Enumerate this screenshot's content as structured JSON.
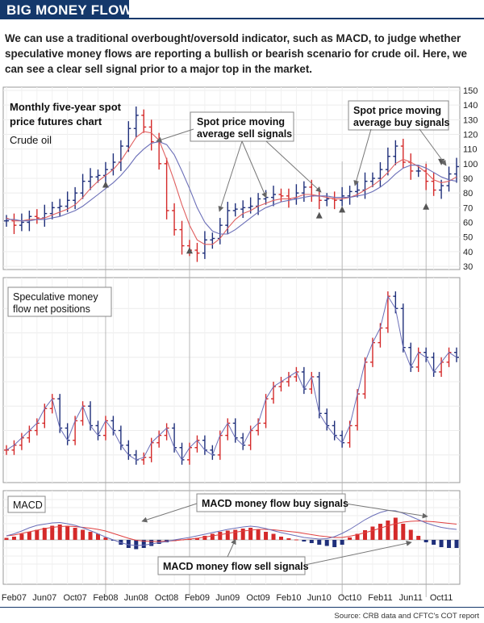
{
  "header": {
    "title": "BIG MONEY FLOWS",
    "intro": "We can use a traditional overbought/oversold indicator, such as MACD, to judge whether speculative money flows are reporting a bullish or bearish scenario for crude oil. Here, we can see a clear sell signal prior to a major top in the market.",
    "source": "Source: CRB data and CFTC's COT report"
  },
  "colors": {
    "up": "#1f2f7a",
    "down": "#d42a2a",
    "avg_red": "#e06060",
    "avg_blue": "#6b6fb8",
    "header": "#14386b"
  },
  "chart_data": [
    {
      "type": "line",
      "title": "Monthly five-year spot price futures chart",
      "subtitle": "Crude oil",
      "x": [
        "Jan07",
        "Feb07",
        "Mar07",
        "Apr07",
        "May07",
        "Jun07",
        "Jul07",
        "Aug07",
        "Sep07",
        "Oct07",
        "Nov07",
        "Dec07",
        "Jan08",
        "Feb08",
        "Mar08",
        "Apr08",
        "May08",
        "Jun08",
        "Jul08",
        "Aug08",
        "Sep08",
        "Oct08",
        "Nov08",
        "Dec08",
        "Jan09",
        "Feb09",
        "Mar09",
        "Apr09",
        "May09",
        "Jun09",
        "Jul09",
        "Aug09",
        "Sep09",
        "Oct09",
        "Nov09",
        "Dec09",
        "Jan10",
        "Feb10",
        "Mar10",
        "Apr10",
        "May10",
        "Jun10",
        "Jul10",
        "Aug10",
        "Sep10",
        "Oct10",
        "Nov10",
        "Dec10",
        "Jan11",
        "Feb11",
        "Mar11",
        "Apr11",
        "May11",
        "Jun11",
        "Jul11",
        "Aug11",
        "Sep11",
        "Oct11",
        "Nov11",
        "Dec11"
      ],
      "xticks": [
        "Feb07",
        "Jun07",
        "Oct07",
        "Feb08",
        "Jun08",
        "Oct08",
        "Feb09",
        "Jun09",
        "Oct09",
        "Feb10",
        "Jun10",
        "Oct10",
        "Feb11",
        "Jun11",
        "Oct11"
      ],
      "yticks": [
        30,
        40,
        50,
        60,
        70,
        80,
        90,
        100,
        110,
        120,
        130,
        140,
        150
      ],
      "ylim": [
        30,
        150
      ],
      "series": [
        {
          "values": [
            61,
            58,
            60,
            64,
            63,
            66,
            70,
            71,
            75,
            80,
            88,
            91,
            92,
            96,
            101,
            112,
            124,
            133,
            125,
            115,
            100,
            68,
            55,
            44,
            41,
            39,
            48,
            49,
            58,
            68,
            69,
            70,
            71,
            76,
            77,
            79,
            78,
            76,
            80,
            84,
            78,
            75,
            76,
            75,
            78,
            81,
            82,
            88,
            90,
            96,
            105,
            112,
            101,
            95,
            95,
            88,
            82,
            85,
            93,
            98
          ]
        }
      ],
      "moving_averages": [
        {
          "color": "red",
          "values": [
            63,
            61,
            61,
            62,
            62,
            63,
            65,
            67,
            69,
            72,
            77,
            83,
            88,
            92,
            96,
            102,
            110,
            118,
            122,
            121,
            116,
            103,
            88,
            72,
            58,
            48,
            45,
            45,
            49,
            56,
            62,
            66,
            68,
            71,
            73,
            75,
            76,
            76,
            77,
            79,
            79,
            78,
            77,
            76,
            76,
            77,
            79,
            82,
            85,
            89,
            94,
            100,
            103,
            101,
            98,
            94,
            89,
            87,
            88,
            91
          ]
        },
        {
          "color": "blue",
          "values": [
            62,
            62,
            61,
            61,
            62,
            62,
            63,
            64,
            66,
            68,
            71,
            75,
            79,
            83,
            87,
            92,
            98,
            105,
            110,
            114,
            115,
            113,
            106,
            95,
            83,
            70,
            60,
            54,
            52,
            52,
            55,
            59,
            63,
            67,
            70,
            72,
            74,
            75,
            76,
            77,
            78,
            78,
            78,
            77,
            77,
            77,
            78,
            79,
            81,
            84,
            88,
            93,
            97,
            99,
            99,
            97,
            94,
            91,
            89,
            88
          ]
        }
      ],
      "annotations": [
        "Spot price moving average sell signals",
        "Spot price moving average buy signals"
      ]
    },
    {
      "type": "line",
      "title": "Speculative money flow net positions",
      "x_same_as": "panel 1",
      "series": [
        {
          "values": [
            12,
            14,
            17,
            20,
            23,
            29,
            33,
            21,
            16,
            24,
            30,
            22,
            18,
            24,
            20,
            14,
            10,
            8,
            9,
            15,
            18,
            21,
            13,
            8,
            13,
            16,
            12,
            10,
            18,
            23,
            17,
            14,
            20,
            23,
            33,
            38,
            40,
            42,
            44,
            37,
            42,
            27,
            22,
            18,
            15,
            22,
            35,
            48,
            56,
            62,
            75,
            70,
            54,
            46,
            52,
            50,
            44,
            48,
            52,
            50
          ]
        }
      ]
    },
    {
      "type": "bar",
      "title": "MACD",
      "histogram": [
        0.5,
        0.8,
        1.5,
        2.0,
        2.5,
        3.0,
        3.5,
        3.8,
        3.5,
        3.0,
        2.5,
        2.0,
        1.5,
        0.6,
        -0.2,
        -1.2,
        -2.0,
        -2.3,
        -2.0,
        -1.5,
        -1.0,
        -0.6,
        -0.3,
        0.1,
        0.3,
        0.5,
        1.0,
        1.5,
        2.0,
        2.3,
        2.5,
        2.8,
        3.0,
        2.5,
        2.0,
        1.5,
        0.8,
        0.4,
        0.1,
        -0.4,
        -0.8,
        -1.2,
        -1.5,
        -1.8,
        -1.2,
        0.6,
        1.5,
        2.4,
        3.3,
        4.0,
        4.8,
        5.5,
        4.0,
        2.5,
        1.0,
        -0.6,
        -1.2,
        -1.8,
        -2.0,
        -2.0
      ],
      "signal_lines": [
        {
          "color": "red",
          "values": [
            1,
            1.2,
            1.6,
            2.0,
            2.4,
            2.8,
            3.1,
            3.3,
            3.4,
            3.3,
            3.1,
            2.9,
            2.6,
            2.2,
            1.6,
            1.0,
            0.4,
            -0.1,
            -0.3,
            -0.4,
            -0.4,
            -0.3,
            -0.2,
            0.0,
            0.2,
            0.4,
            0.7,
            1.0,
            1.3,
            1.6,
            1.9,
            2.2,
            2.4,
            2.6,
            2.6,
            2.5,
            2.3,
            2.1,
            1.9,
            1.6,
            1.3,
            1.0,
            0.8,
            0.6,
            0.6,
            0.9,
            1.3,
            1.8,
            2.3,
            2.9,
            3.5,
            4.0,
            4.4,
            4.6,
            4.7,
            4.6,
            4.5,
            4.3,
            4.1,
            3.9
          ]
        },
        {
          "color": "blue",
          "values": [
            1,
            1.5,
            2.2,
            3.0,
            3.6,
            3.9,
            4.2,
            4.3,
            4.0,
            3.6,
            3.0,
            2.3,
            1.5,
            0.7,
            0.0,
            -0.7,
            -1.2,
            -1.4,
            -1.3,
            -1.0,
            -0.7,
            -0.4,
            0.0,
            0.3,
            0.6,
            1.0,
            1.4,
            1.8,
            2.2,
            2.6,
            2.9,
            3.2,
            3.4,
            3.2,
            2.8,
            2.3,
            1.8,
            1.4,
            1.0,
            0.6,
            0.4,
            0.2,
            0.3,
            0.8,
            1.6,
            2.6,
            3.8,
            5.0,
            6.0,
            6.8,
            7.3,
            7.2,
            6.6,
            5.8,
            5.0,
            4.2,
            3.6,
            3.1,
            2.8,
            2.6
          ]
        }
      ],
      "annotations": [
        "MACD money flow buy signals",
        "MACD money flow sell signals"
      ]
    }
  ]
}
